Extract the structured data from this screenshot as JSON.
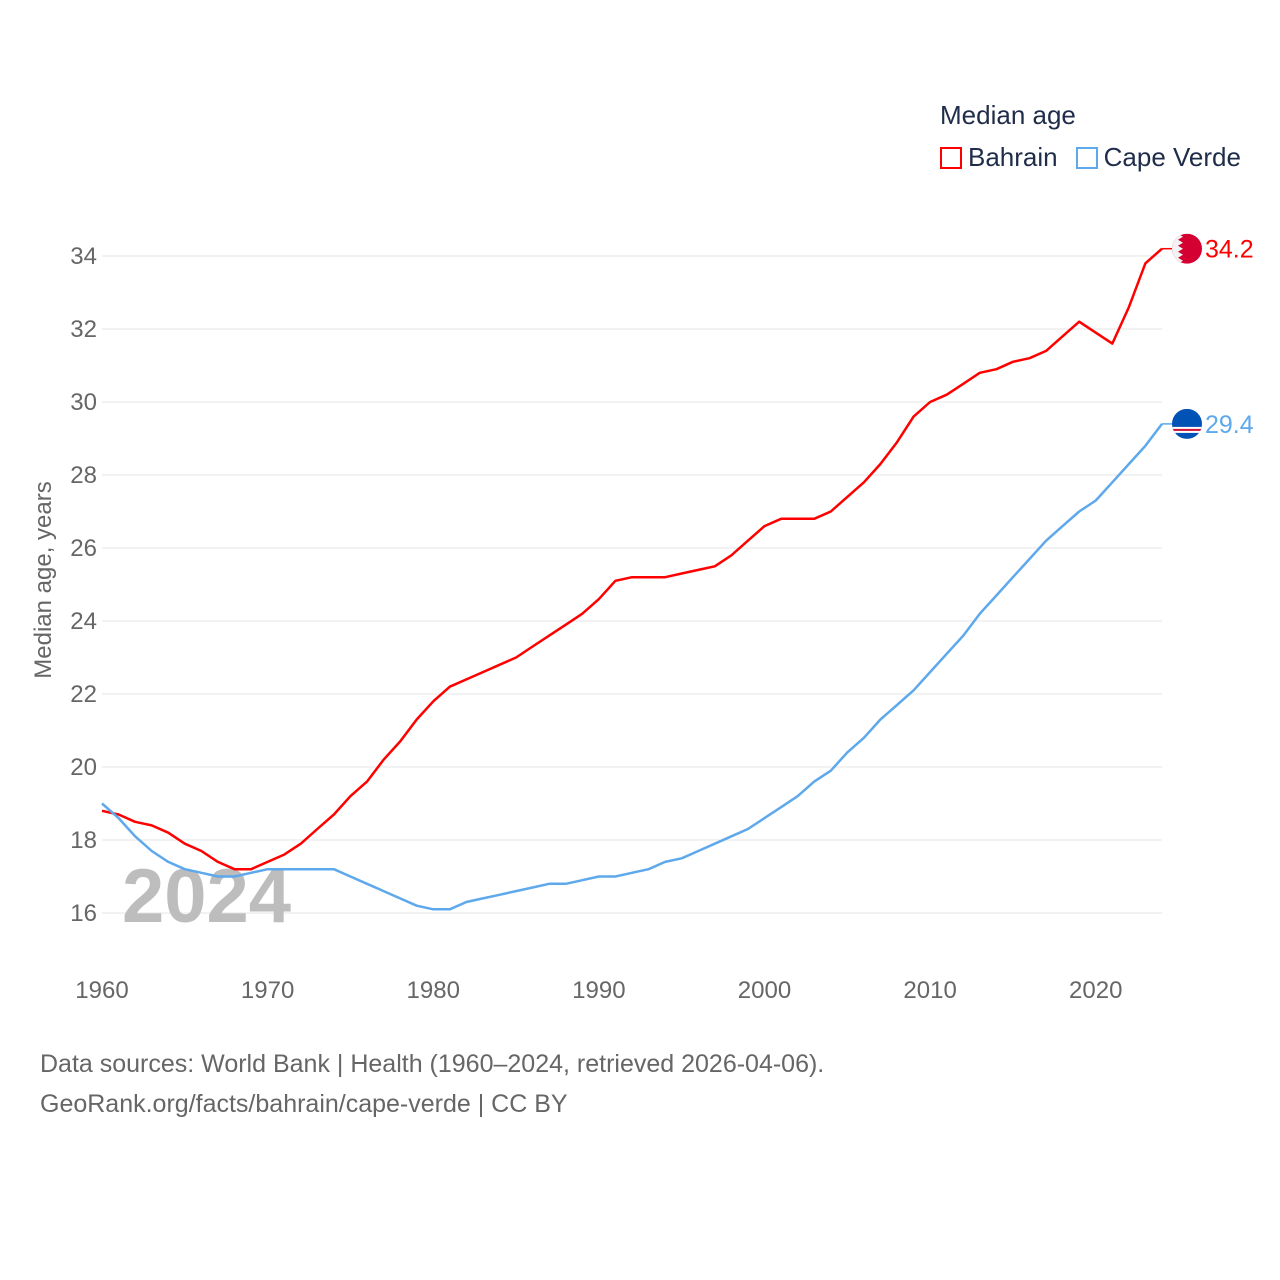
{
  "chart_data": {
    "type": "line",
    "title": "Median age",
    "xlabel": "",
    "ylabel": "Median age, years",
    "xlim": [
      1960,
      2024
    ],
    "ylim": [
      15,
      35
    ],
    "yticks": [
      16,
      18,
      20,
      22,
      24,
      26,
      28,
      30,
      32,
      34
    ],
    "xticks": [
      1960,
      1970,
      1980,
      1990,
      2000,
      2010,
      2020
    ],
    "grid": true,
    "legend_placement": "top-right",
    "watermark_year": "2024",
    "x": [
      1960,
      1961,
      1962,
      1963,
      1964,
      1965,
      1966,
      1967,
      1968,
      1969,
      1970,
      1971,
      1972,
      1973,
      1974,
      1975,
      1976,
      1977,
      1978,
      1979,
      1980,
      1981,
      1982,
      1983,
      1984,
      1985,
      1986,
      1987,
      1988,
      1989,
      1990,
      1991,
      1992,
      1993,
      1994,
      1995,
      1996,
      1997,
      1998,
      1999,
      2000,
      2001,
      2002,
      2003,
      2004,
      2005,
      2006,
      2007,
      2008,
      2009,
      2010,
      2011,
      2012,
      2013,
      2014,
      2015,
      2016,
      2017,
      2018,
      2019,
      2020,
      2021,
      2022,
      2023,
      2024
    ],
    "series": [
      {
        "name": "Bahrain",
        "color": "#ff0000",
        "end_label": "34.2",
        "flag": "bahrain-flag",
        "values": [
          18.8,
          18.7,
          18.5,
          18.4,
          18.2,
          17.9,
          17.7,
          17.4,
          17.2,
          17.2,
          17.4,
          17.6,
          17.9,
          18.3,
          18.7,
          19.2,
          19.6,
          20.2,
          20.7,
          21.3,
          21.8,
          22.2,
          22.4,
          22.6,
          22.8,
          23.0,
          23.3,
          23.6,
          23.9,
          24.2,
          24.6,
          25.1,
          25.2,
          25.2,
          25.2,
          25.3,
          25.4,
          25.5,
          25.8,
          26.2,
          26.6,
          26.8,
          26.8,
          26.8,
          27.0,
          27.4,
          27.8,
          28.3,
          28.9,
          29.6,
          30.0,
          30.2,
          30.5,
          30.8,
          30.9,
          31.1,
          31.2,
          31.4,
          31.8,
          32.2,
          31.9,
          31.6,
          32.6,
          33.8,
          34.2
        ]
      },
      {
        "name": "Cape Verde",
        "color": "#5ea8ec",
        "end_label": "29.4",
        "flag": "cape-verde-flag",
        "values": [
          19.0,
          18.6,
          18.1,
          17.7,
          17.4,
          17.2,
          17.1,
          17.0,
          17.0,
          17.1,
          17.2,
          17.2,
          17.2,
          17.2,
          17.2,
          17.0,
          16.8,
          16.6,
          16.4,
          16.2,
          16.1,
          16.1,
          16.3,
          16.4,
          16.5,
          16.6,
          16.7,
          16.8,
          16.8,
          16.9,
          17.0,
          17.0,
          17.1,
          17.2,
          17.4,
          17.5,
          17.7,
          17.9,
          18.1,
          18.3,
          18.6,
          18.9,
          19.2,
          19.6,
          19.9,
          20.4,
          20.8,
          21.3,
          21.7,
          22.1,
          22.6,
          23.1,
          23.6,
          24.2,
          24.7,
          25.2,
          25.7,
          26.2,
          26.6,
          27.0,
          27.3,
          27.8,
          28.3,
          28.8,
          29.4
        ]
      }
    ]
  },
  "source": {
    "line1": "Data sources: World Bank | Health (1960–2024, retrieved 2026-04-06).",
    "line2": "GeoRank.org/facts/bahrain/cape-verde | CC BY"
  }
}
